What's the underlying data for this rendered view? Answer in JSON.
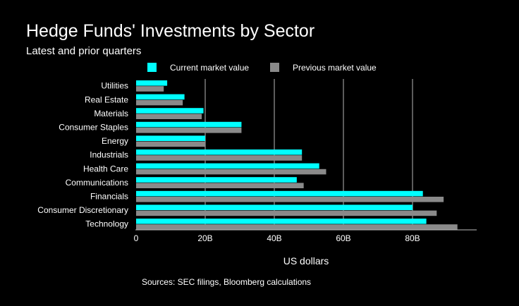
{
  "chart_data": {
    "type": "bar",
    "orientation": "horizontal",
    "title": "Hedge Funds' Investments by Sector",
    "subtitle": "Latest and prior quarters",
    "xlabel": "US dollars",
    "source": "Sources: SEC filings, Bloomberg calculations",
    "categories": [
      "Utilities",
      "Real Estate",
      "Materials",
      "Consumer Staples",
      "Energy",
      "Industrials",
      "Health Care",
      "Communications",
      "Financials",
      "Consumer Discretionary",
      "Technology"
    ],
    "series": [
      {
        "name": "Current market value",
        "color": "#00ffff",
        "values": [
          9,
          14,
          19.5,
          30.5,
          20,
          48,
          53,
          46.5,
          83,
          80,
          84
        ]
      },
      {
        "name": "Previous market value",
        "color": "#8a8a8a",
        "values": [
          8,
          13.5,
          19,
          30.5,
          20,
          48,
          55,
          48.5,
          89,
          87,
          93
        ]
      }
    ],
    "xlim": [
      0,
      98
    ],
    "xticks": [
      0,
      20,
      40,
      60,
      80
    ],
    "xtick_labels": [
      "0",
      "20B",
      "40B",
      "60B",
      "80B"
    ],
    "grid": "vertical",
    "legend_position": "top"
  }
}
